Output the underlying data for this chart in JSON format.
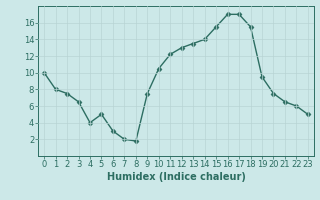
{
  "x": [
    0,
    1,
    2,
    3,
    4,
    5,
    6,
    7,
    8,
    9,
    10,
    11,
    12,
    13,
    14,
    15,
    16,
    17,
    18,
    19,
    20,
    21,
    22,
    23
  ],
  "y": [
    10,
    8,
    7.5,
    6.5,
    4,
    5,
    3,
    2,
    1.8,
    7.5,
    10.5,
    12.2,
    13,
    13.5,
    14,
    15.5,
    17,
    17,
    15.5,
    9.5,
    7.5,
    6.5,
    6,
    5
  ],
  "line_color": "#2d6e62",
  "marker": "D",
  "marker_size": 2.5,
  "bg_color": "#cce8e8",
  "grid_color": "#b8d4d4",
  "xlabel": "Humidex (Indice chaleur)",
  "xlabel_fontsize": 7,
  "tick_fontsize": 6,
  "xlim": [
    -0.5,
    23.5
  ],
  "ylim": [
    0,
    18
  ],
  "yticks": [
    2,
    4,
    6,
    8,
    10,
    12,
    14,
    16
  ],
  "xticks": [
    0,
    1,
    2,
    3,
    4,
    5,
    6,
    7,
    8,
    9,
    10,
    11,
    12,
    13,
    14,
    15,
    16,
    17,
    18,
    19,
    20,
    21,
    22,
    23
  ],
  "linewidth": 1.0
}
